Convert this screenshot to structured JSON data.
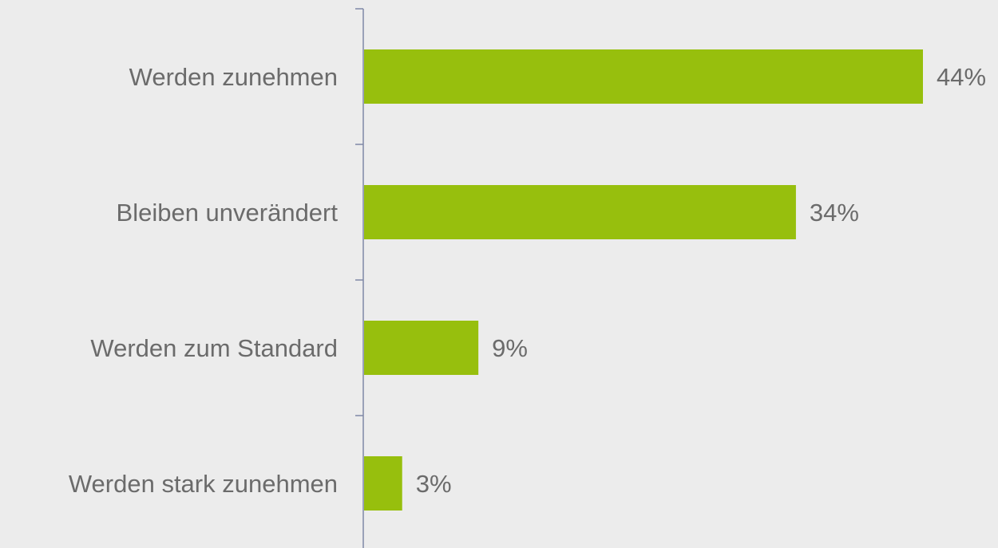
{
  "chart_data": {
    "type": "bar",
    "orientation": "horizontal",
    "categories": [
      "Werden zunehmen",
      "Bleiben unverändert",
      "Werden zum Standard",
      "Werden stark zunehmen"
    ],
    "values": [
      44,
      34,
      9,
      3
    ],
    "value_labels": [
      "44%",
      "34%",
      "9%",
      "3%"
    ],
    "unit": "%",
    "title": "",
    "xlabel": "",
    "ylabel": "",
    "xlim": [
      0,
      44
    ],
    "grid": false,
    "legend": "none",
    "colors": {
      "bar": "#97bf0d",
      "axis": "#7f88a6",
      "text": "#6b6b6b",
      "background": "#ececec"
    }
  }
}
